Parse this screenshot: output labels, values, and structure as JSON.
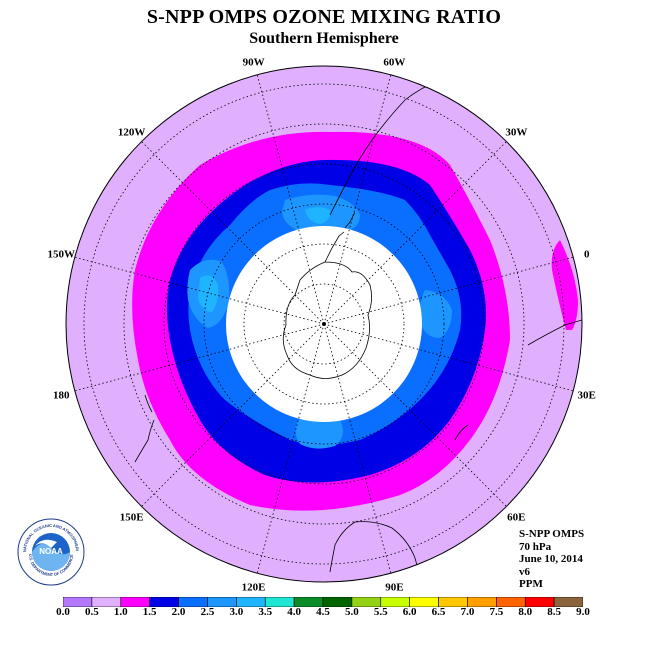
{
  "header": {
    "title": "S-NPP OMPS OZONE MIXING RATIO",
    "subtitle": "Southern Hemisphere"
  },
  "map": {
    "projection": "south-polar-stereographic",
    "longitude_labels": [
      "90W",
      "60W",
      "30W",
      "0",
      "30E",
      "60E",
      "90E",
      "120E",
      "150E",
      "180",
      "150W",
      "120W"
    ],
    "contour_levels_ppm": [
      {
        "band": "0.5-1.0",
        "color": "#E0B0FF"
      },
      {
        "band": "1.0-1.5",
        "color": "#FF00FF"
      },
      {
        "band": "1.5-2.0",
        "color": "#0000E6"
      },
      {
        "band": "2.0-2.5",
        "color": "#0A6EFF"
      },
      {
        "band": "2.5-3.0",
        "color": "#1E96FF"
      },
      {
        "band": "3.0-3.5",
        "color": "#1EB4FF"
      }
    ],
    "no_data_color": "#FFFFFF"
  },
  "info": {
    "instrument": "S-NPP OMPS",
    "level": "70 hPa",
    "date": "June 10, 2014",
    "version": "v6",
    "units": "PPM"
  },
  "logo": {
    "text": "NOAA",
    "ring_text": "NATIONAL OCEANIC AND ATMOSPHERIC ADMINISTRATION",
    "ring_bottom": "U.S. DEPARTMENT OF COMMERCE"
  },
  "colorbar": {
    "ticks": [
      "0.0",
      "0.5",
      "1.0",
      "1.5",
      "2.0",
      "2.5",
      "3.0",
      "3.5",
      "4.0",
      "4.5",
      "5.0",
      "5.5",
      "6.0",
      "6.5",
      "7.0",
      "7.5",
      "8.0",
      "8.5",
      "9.0"
    ],
    "colors": [
      "#B478FF",
      "#E0B0FF",
      "#FF00FF",
      "#0000E6",
      "#0A6EFF",
      "#1E96FF",
      "#1EB4FF",
      "#1EE6D2",
      "#0A8C28",
      "#006400",
      "#96D214",
      "#C8FF00",
      "#FFFF00",
      "#FFC800",
      "#FFA000",
      "#FF6400",
      "#FF0000",
      "#8C643C"
    ]
  }
}
